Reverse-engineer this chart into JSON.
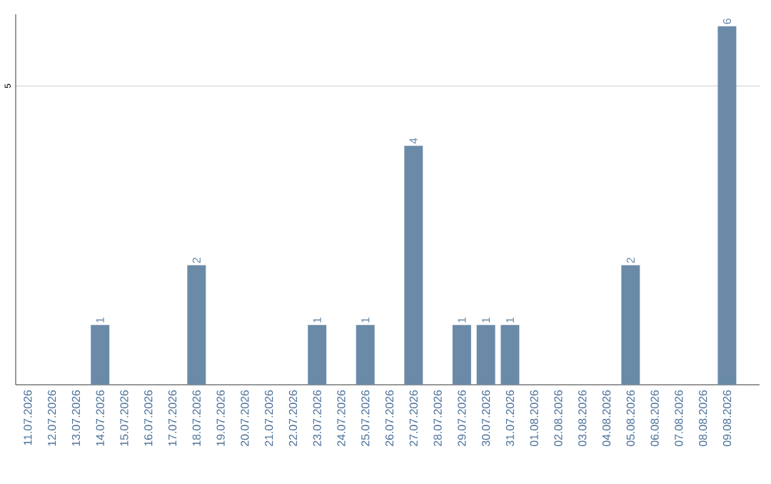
{
  "chart_data": {
    "type": "bar",
    "categories": [
      "11.07.2026",
      "12.07.2026",
      "13.07.2026",
      "14.07.2026",
      "15.07.2026",
      "16.07.2026",
      "17.07.2026",
      "18.07.2026",
      "19.07.2026",
      "20.07.2026",
      "21.07.2026",
      "22.07.2026",
      "23.07.2026",
      "24.07.2026",
      "25.07.2026",
      "26.07.2026",
      "27.07.2026",
      "28.07.2026",
      "29.07.2026",
      "30.07.2026",
      "31.07.2026",
      "01.08.2026",
      "02.08.2026",
      "03.08.2026",
      "04.08.2026",
      "05.08.2026",
      "06.08.2026",
      "07.08.2026",
      "08.08.2026",
      "09.08.2026"
    ],
    "values": [
      0,
      0,
      0,
      1,
      0,
      0,
      0,
      2,
      0,
      0,
      0,
      0,
      1,
      0,
      1,
      0,
      4,
      0,
      1,
      1,
      1,
      0,
      0,
      0,
      0,
      2,
      0,
      0,
      0,
      6
    ],
    "value_labels": [
      null,
      null,
      null,
      "1",
      null,
      null,
      null,
      "2",
      null,
      null,
      null,
      null,
      "1",
      null,
      "1",
      null,
      "4",
      null,
      "1",
      "1",
      "1",
      null,
      null,
      null,
      null,
      "2",
      null,
      null,
      null,
      "6"
    ],
    "color": "#6b8aa8",
    "ylim": [
      0,
      6.2
    ],
    "yticks": [
      5
    ],
    "grid": "y"
  }
}
